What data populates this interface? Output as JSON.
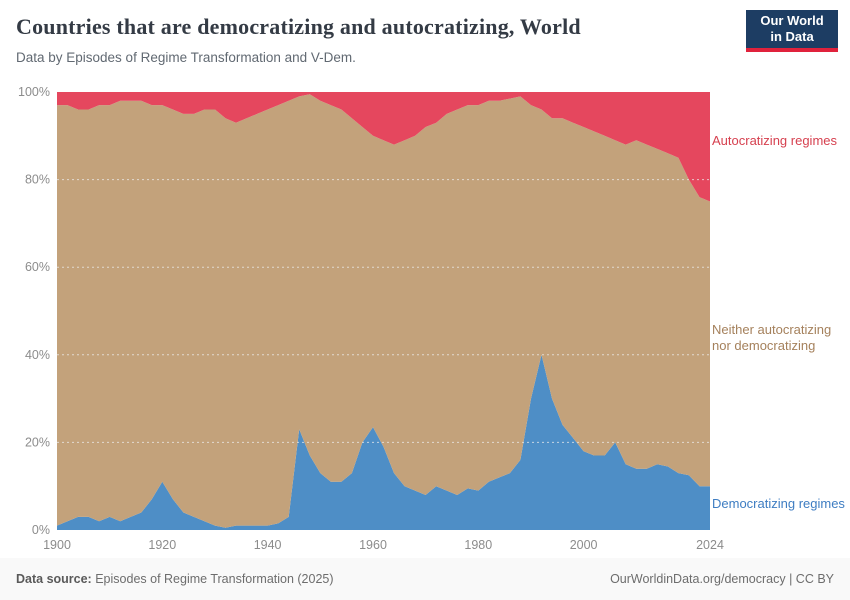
{
  "chart_data": {
    "type": "area",
    "stacked": true,
    "normalized": true,
    "title": "Countries that are democratizing and autocratizing, World",
    "subtitle": "Data by Episodes of Regime Transformation and V-Dem.",
    "xlabel": "",
    "ylabel": "",
    "ylim": [
      0,
      100
    ],
    "yticks": [
      0,
      20,
      40,
      60,
      80,
      100
    ],
    "ytick_labels": [
      "0%",
      "20%",
      "40%",
      "60%",
      "80%",
      "100%"
    ],
    "xticks": [
      1900,
      1920,
      1940,
      1960,
      1980,
      2000,
      2024
    ],
    "grid": true,
    "legend_position": "right",
    "x": [
      1900,
      1902,
      1904,
      1906,
      1908,
      1910,
      1912,
      1914,
      1916,
      1918,
      1920,
      1922,
      1924,
      1926,
      1928,
      1930,
      1932,
      1934,
      1936,
      1938,
      1940,
      1942,
      1944,
      1946,
      1948,
      1950,
      1952,
      1954,
      1956,
      1958,
      1960,
      1962,
      1964,
      1966,
      1968,
      1970,
      1972,
      1974,
      1976,
      1978,
      1980,
      1982,
      1984,
      1986,
      1988,
      1990,
      1992,
      1994,
      1996,
      1998,
      2000,
      2002,
      2004,
      2006,
      2008,
      2010,
      2012,
      2014,
      2016,
      2018,
      2020,
      2022,
      2024
    ],
    "series": [
      {
        "name": "Democratizing regimes",
        "color": "#4e8ec6",
        "label_color": "#3e7dc2",
        "values": [
          1,
          2,
          3,
          3,
          2,
          3,
          2,
          3,
          4,
          7,
          11,
          7,
          4,
          3,
          2,
          1,
          0.5,
          1,
          1,
          1,
          1,
          1.5,
          3,
          23,
          17,
          13,
          11,
          11,
          13,
          20,
          23.5,
          19,
          13,
          10,
          9,
          8,
          10,
          9,
          8,
          9.5,
          9,
          11,
          12,
          13,
          16,
          30,
          40,
          30,
          24,
          21,
          18,
          17,
          17,
          20,
          15,
          14,
          14,
          15,
          14.5,
          13,
          12.5,
          10,
          10
        ]
      },
      {
        "name": "Neither autocratizing nor democratizing",
        "color": "#c3a27b",
        "label_color": "#a5815c",
        "values": [
          96,
          95,
          93,
          93,
          95,
          94,
          96,
          95,
          94,
          90,
          86,
          89,
          91,
          92,
          94,
          95,
          93.5,
          92,
          93,
          94,
          95,
          95.5,
          95,
          76,
          82.5,
          85,
          86,
          85,
          81,
          72,
          66.5,
          70,
          75,
          79,
          81,
          84,
          83,
          86,
          88,
          87.5,
          88,
          87,
          86,
          85.5,
          83,
          67,
          56,
          64,
          70,
          72,
          74,
          74,
          73,
          69,
          73,
          75,
          74,
          72,
          71.5,
          72,
          67.5,
          66,
          65
        ]
      },
      {
        "name": "Autocratizing regimes",
        "color": "#e5475e",
        "label_color": "#d6404f",
        "values": [
          3,
          3,
          4,
          4,
          3,
          3,
          2,
          2,
          2,
          3,
          3,
          4,
          5,
          5,
          4,
          4,
          6,
          7,
          6,
          5,
          4,
          3,
          2,
          1,
          0.5,
          2,
          3,
          4,
          6,
          8,
          10,
          11,
          12,
          11,
          10,
          8,
          7,
          5,
          4,
          3,
          3,
          2,
          2,
          1.5,
          1,
          3,
          4,
          6,
          6,
          7,
          8,
          9,
          10,
          11,
          12,
          11,
          12,
          13,
          14,
          15,
          20,
          24,
          25
        ]
      }
    ]
  },
  "header": {
    "logo_line1": "Our World",
    "logo_line2": "in Data",
    "logo_bg": "#1d3d63",
    "logo_accent": "#e0223c"
  },
  "footer": {
    "source_label": "Data source:",
    "source_value": "Episodes of Regime Transformation (2025)",
    "credit": "OurWorldinData.org/democracy | CC BY"
  }
}
